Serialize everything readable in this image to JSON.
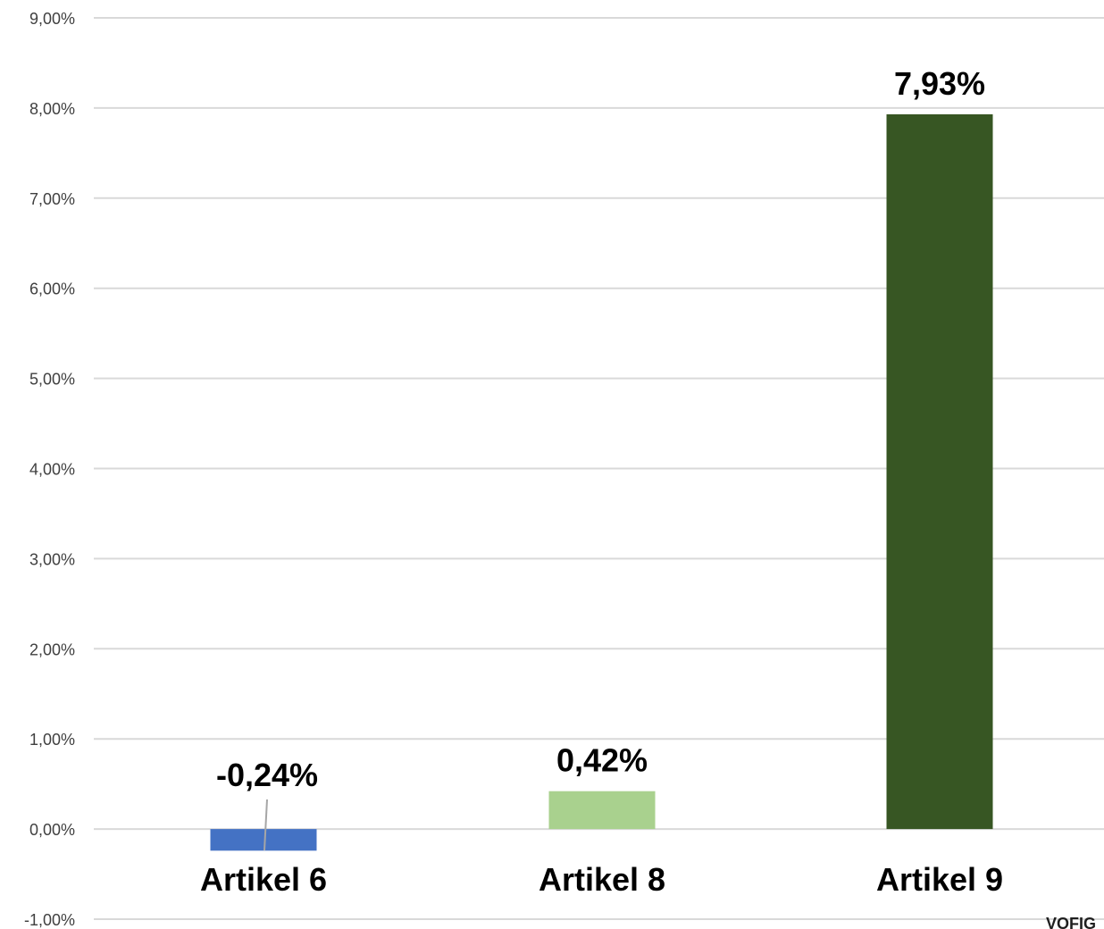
{
  "chart_data": {
    "type": "bar",
    "categories": [
      "Artikel 6",
      "Artikel 8",
      "Artikel 9"
    ],
    "values": [
      -0.24,
      0.42,
      7.93
    ],
    "data_labels": [
      "-0,24%",
      "0,42%",
      "7,93%"
    ],
    "ylim": [
      -1,
      9
    ],
    "yticks": [
      -1,
      0,
      1,
      2,
      3,
      4,
      5,
      6,
      7,
      8,
      9
    ],
    "ytick_labels": [
      "-1,00%",
      "0,00%",
      "1,00%",
      "2,00%",
      "3,00%",
      "4,00%",
      "5,00%",
      "6,00%",
      "7,00%",
      "8,00%",
      "9,00%"
    ],
    "grid": true,
    "legend": "none",
    "title": "",
    "xlabel": "",
    "ylabel": "",
    "colors": [
      "#4472c4",
      "#a9d18e",
      "#375623"
    ],
    "gridline_color": "#d9d9d9"
  },
  "watermark": "VOFIG"
}
